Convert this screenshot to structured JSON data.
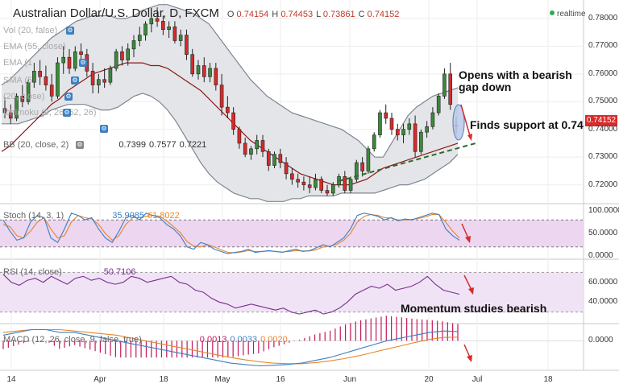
{
  "header": {
    "symbol": "Australian Dollar/U.S. Dollar, D, FXCM",
    "open_label": "O",
    "open": "0.74154",
    "high_label": "H",
    "high": "0.74453",
    "low_label": "L",
    "low": "0.73861",
    "close_label": "C",
    "close": "0.74152",
    "realtime": "realtime"
  },
  "legend": {
    "vol": "Vol (20, false)",
    "ema1": "EMA (55, close)",
    "ema2": "EMA (1",
    "sma": "SMA (5",
    "other1": "(20, close)",
    "ichimoku": "Ichimoku (9, 26, 52, 26)",
    "bb": "BB (20, close, 2)",
    "bb_values": [
      "0.7399",
      "0.7577",
      "0.7221"
    ],
    "stoch": "Stoch (14, 3, 1)",
    "stoch_values": [
      "35.9085",
      "61.8022"
    ],
    "rsi": "RSI (14, close)",
    "rsi_value": "50.7106",
    "macd": "MACD (12, 26, close, 9, false, true)",
    "macd_values": [
      "0.0013",
      "0.0033",
      "0.0020"
    ]
  },
  "annotations": {
    "gap": "Opens with a bearish gap down",
    "support": "Finds support at 0.74",
    "momentum": "Momentum studies bearish"
  },
  "price_tag": "0.74152",
  "colors": {
    "up": "#3a8a3a",
    "down": "#d62b2b",
    "bb": "#b6bcc4",
    "ma": "#8b1a1a",
    "stoch_k": "#3d7fc1",
    "stoch_d": "#e8862a",
    "rsi": "#7a2d8f",
    "macd": "#3d7fc1",
    "signal": "#e8862a",
    "hist": "#c2185b",
    "trend": "#2e6b2e"
  },
  "chart_data": [
    {
      "type": "candlestick",
      "panel": "price",
      "ylim": [
        0.7135,
        0.7855
      ],
      "yticks": [
        "0.78000",
        "0.77000",
        "0.76000",
        "0.75000",
        "0.74000",
        "0.73000",
        "0.72000"
      ],
      "ytick_values": [
        0.78,
        0.77,
        0.76,
        0.75,
        0.74,
        0.73,
        0.72
      ],
      "xticks": [
        "14",
        "Apr",
        "18",
        "May",
        "16",
        "Jun",
        "20",
        "Jul",
        "18"
      ],
      "ohlc": [
        [
          0.7475,
          0.7515,
          0.744,
          0.746
        ],
        [
          0.746,
          0.749,
          0.742,
          0.744
        ],
        [
          0.744,
          0.753,
          0.743,
          0.752
        ],
        [
          0.752,
          0.756,
          0.748,
          0.75
        ],
        [
          0.75,
          0.758,
          0.749,
          0.757
        ],
        [
          0.757,
          0.764,
          0.755,
          0.761
        ],
        [
          0.761,
          0.765,
          0.756,
          0.759
        ],
        [
          0.759,
          0.763,
          0.754,
          0.756
        ],
        [
          0.756,
          0.76,
          0.75,
          0.752
        ],
        [
          0.752,
          0.766,
          0.751,
          0.764
        ],
        [
          0.764,
          0.77,
          0.76,
          0.766
        ],
        [
          0.766,
          0.769,
          0.76,
          0.762
        ],
        [
          0.762,
          0.77,
          0.761,
          0.768
        ],
        [
          0.768,
          0.771,
          0.764,
          0.767
        ],
        [
          0.767,
          0.769,
          0.759,
          0.761
        ],
        [
          0.761,
          0.764,
          0.753,
          0.756
        ],
        [
          0.756,
          0.76,
          0.753,
          0.758
        ],
        [
          0.758,
          0.762,
          0.755,
          0.757
        ],
        [
          0.757,
          0.763,
          0.756,
          0.762
        ],
        [
          0.762,
          0.769,
          0.761,
          0.768
        ],
        [
          0.768,
          0.77,
          0.763,
          0.765
        ],
        [
          0.765,
          0.771,
          0.763,
          0.769
        ],
        [
          0.769,
          0.774,
          0.766,
          0.772
        ],
        [
          0.772,
          0.777,
          0.77,
          0.774
        ],
        [
          0.774,
          0.779,
          0.772,
          0.778
        ],
        [
          0.778,
          0.782,
          0.775,
          0.78
        ],
        [
          0.78,
          0.784,
          0.777,
          0.779
        ],
        [
          0.779,
          0.781,
          0.774,
          0.776
        ],
        [
          0.776,
          0.779,
          0.773,
          0.777
        ],
        [
          0.777,
          0.779,
          0.771,
          0.772
        ],
        [
          0.772,
          0.776,
          0.77,
          0.774
        ],
        [
          0.774,
          0.776,
          0.765,
          0.767
        ],
        [
          0.767,
          0.769,
          0.759,
          0.76
        ],
        [
          0.76,
          0.765,
          0.758,
          0.763
        ],
        [
          0.763,
          0.766,
          0.757,
          0.759
        ],
        [
          0.759,
          0.764,
          0.757,
          0.762
        ],
        [
          0.762,
          0.764,
          0.754,
          0.756
        ],
        [
          0.756,
          0.76,
          0.745,
          0.748
        ],
        [
          0.748,
          0.752,
          0.744,
          0.746
        ],
        [
          0.746,
          0.748,
          0.738,
          0.74
        ],
        [
          0.74,
          0.741,
          0.733,
          0.735
        ],
        [
          0.735,
          0.737,
          0.73,
          0.731
        ],
        [
          0.731,
          0.734,
          0.729,
          0.733
        ],
        [
          0.733,
          0.738,
          0.731,
          0.736
        ],
        [
          0.736,
          0.738,
          0.73,
          0.732
        ],
        [
          0.732,
          0.733,
          0.725,
          0.727
        ],
        [
          0.727,
          0.732,
          0.726,
          0.731
        ],
        [
          0.731,
          0.733,
          0.726,
          0.728
        ],
        [
          0.728,
          0.73,
          0.722,
          0.724
        ],
        [
          0.724,
          0.726,
          0.72,
          0.722
        ],
        [
          0.722,
          0.724,
          0.719,
          0.721
        ],
        [
          0.721,
          0.723,
          0.718,
          0.72
        ],
        [
          0.72,
          0.723,
          0.717,
          0.719
        ],
        [
          0.719,
          0.724,
          0.718,
          0.722
        ],
        [
          0.722,
          0.723,
          0.717,
          0.718
        ],
        [
          0.718,
          0.72,
          0.716,
          0.717
        ],
        [
          0.717,
          0.721,
          0.716,
          0.72
        ],
        [
          0.72,
          0.724,
          0.719,
          0.723
        ],
        [
          0.723,
          0.725,
          0.717,
          0.718
        ],
        [
          0.718,
          0.723,
          0.717,
          0.722
        ],
        [
          0.722,
          0.729,
          0.721,
          0.728
        ],
        [
          0.728,
          0.73,
          0.723,
          0.725
        ],
        [
          0.725,
          0.734,
          0.724,
          0.733
        ],
        [
          0.733,
          0.739,
          0.732,
          0.738
        ],
        [
          0.738,
          0.747,
          0.737,
          0.746
        ],
        [
          0.746,
          0.749,
          0.742,
          0.744
        ],
        [
          0.744,
          0.746,
          0.738,
          0.74
        ],
        [
          0.74,
          0.742,
          0.736,
          0.738
        ],
        [
          0.738,
          0.742,
          0.735,
          0.74
        ],
        [
          0.74,
          0.744,
          0.738,
          0.742
        ],
        [
          0.742,
          0.745,
          0.73,
          0.732
        ],
        [
          0.732,
          0.74,
          0.731,
          0.739
        ],
        [
          0.739,
          0.743,
          0.737,
          0.741
        ],
        [
          0.741,
          0.748,
          0.74,
          0.746
        ],
        [
          0.746,
          0.753,
          0.745,
          0.752
        ],
        [
          0.752,
          0.762,
          0.751,
          0.76
        ],
        [
          0.76,
          0.764,
          0.747,
          0.749
        ],
        [
          0.7415,
          0.7445,
          0.7386,
          0.7415
        ]
      ],
      "series": [
        {
          "name": "BB upper",
          "values": [
            0.756,
            0.758,
            0.761,
            0.764,
            0.767,
            0.77,
            0.773,
            0.775,
            0.777,
            0.779,
            0.78,
            0.781,
            0.781,
            0.781,
            0.78,
            0.78,
            0.781,
            0.783,
            0.784,
            0.785,
            0.785,
            0.784,
            0.783,
            0.782,
            0.78,
            0.778,
            0.774,
            0.77,
            0.766,
            0.762,
            0.758,
            0.755,
            0.752,
            0.75,
            0.748,
            0.746,
            0.745,
            0.744,
            0.743,
            0.742,
            0.741,
            0.74,
            0.738,
            0.736,
            0.733,
            0.73,
            0.73,
            0.735,
            0.74,
            0.745,
            0.748,
            0.75,
            0.752,
            0.753,
            0.754,
            0.755
          ]
        },
        {
          "name": "BB lower",
          "values": [
            0.742,
            0.742,
            0.742,
            0.743,
            0.744,
            0.745,
            0.747,
            0.748,
            0.749,
            0.749,
            0.749,
            0.748,
            0.747,
            0.747,
            0.748,
            0.75,
            0.752,
            0.753,
            0.752,
            0.75,
            0.747,
            0.743,
            0.738,
            0.733,
            0.728,
            0.724,
            0.721,
            0.719,
            0.717,
            0.716,
            0.715,
            0.715,
            0.714,
            0.714,
            0.714,
            0.715,
            0.715,
            0.716,
            0.716,
            0.716,
            0.716,
            0.717,
            0.717,
            0.717,
            0.717,
            0.717,
            0.718,
            0.719,
            0.72,
            0.72,
            0.721,
            0.722,
            0.724,
            0.726,
            0.728,
            0.731
          ]
        },
        {
          "name": "Moving average",
          "values": [
            0.732,
            0.734,
            0.737,
            0.74,
            0.743,
            0.746,
            0.749,
            0.751,
            0.754,
            0.756,
            0.758,
            0.76,
            0.761,
            0.762,
            0.763,
            0.764,
            0.764,
            0.764,
            0.763,
            0.763,
            0.762,
            0.76,
            0.758,
            0.756,
            0.754,
            0.751,
            0.748,
            0.745,
            0.742,
            0.739,
            0.736,
            0.734,
            0.732,
            0.73,
            0.728,
            0.726,
            0.724,
            0.723,
            0.722,
            0.721,
            0.72,
            0.72,
            0.72,
            0.721,
            0.722,
            0.724,
            0.726,
            0.727,
            0.728,
            0.729,
            0.73,
            0.731,
            0.732,
            0.733,
            0.734,
            0.735
          ]
        }
      ],
      "trendline": [
        [
          0.718
        ],
        [
          0.732
        ]
      ]
    },
    {
      "type": "line",
      "panel": "stochastic",
      "ylim": [
        0,
        100
      ],
      "yticks": [
        "100.0000",
        "50.0000",
        "0.0000"
      ],
      "ytick_values": [
        100,
        50,
        0
      ],
      "bands": [
        80,
        20
      ],
      "series": [
        {
          "name": "%K",
          "values": [
            80,
            55,
            35,
            40,
            75,
            90,
            85,
            40,
            30,
            60,
            95,
            90,
            80,
            85,
            60,
            40,
            30,
            55,
            85,
            90,
            80,
            95,
            90,
            85,
            70,
            60,
            45,
            20,
            15,
            30,
            25,
            15,
            10,
            5,
            8,
            10,
            15,
            8,
            10,
            12,
            10,
            8,
            12,
            15,
            10,
            12,
            18,
            25,
            20,
            30,
            40,
            60,
            90,
            95,
            92,
            88,
            80,
            85,
            78,
            82,
            80,
            85,
            90,
            95,
            92,
            60,
            45,
            35
          ]
        },
        {
          "name": "%D",
          "values": [
            70,
            65,
            45,
            40,
            55,
            75,
            85,
            60,
            40,
            45,
            75,
            90,
            85,
            82,
            70,
            50,
            35,
            45,
            70,
            85,
            85,
            88,
            90,
            88,
            78,
            65,
            52,
            32,
            22,
            20,
            25,
            20,
            14,
            8,
            7,
            9,
            12,
            10,
            10,
            11,
            10,
            9,
            10,
            12,
            11,
            11,
            14,
            20,
            22,
            26,
            35,
            50,
            75,
            88,
            92,
            90,
            85,
            84,
            80,
            80,
            81,
            83,
            87,
            92,
            92,
            75,
            55,
            40
          ]
        }
      ]
    },
    {
      "type": "line",
      "panel": "rsi",
      "ylim": [
        20,
        80
      ],
      "yticks": [
        "60.0000",
        "40.0000"
      ],
      "ytick_values": [
        60,
        40
      ],
      "bands": [
        70,
        30
      ],
      "series": [
        {
          "name": "RSI",
          "values": [
            68,
            60,
            57,
            62,
            64,
            60,
            66,
            62,
            58,
            64,
            66,
            62,
            64,
            60,
            58,
            60,
            66,
            64,
            60,
            62,
            64,
            66,
            60,
            58,
            52,
            50,
            44,
            40,
            38,
            34,
            36,
            38,
            36,
            34,
            32,
            34,
            30,
            28,
            30,
            32,
            28,
            30,
            34,
            40,
            48,
            52,
            56,
            54,
            58,
            52,
            54,
            56,
            60,
            66,
            58,
            52,
            50,
            48
          ]
        }
      ]
    },
    {
      "type": "line",
      "panel": "macd",
      "ylim": [
        -0.01,
        0.005
      ],
      "yticks": [
        "0.0000"
      ],
      "ytick_values": [
        0
      ],
      "series": [
        {
          "name": "MACD",
          "values": [
            0.002,
            0.003,
            0.004,
            0.004,
            0.003,
            0.003,
            0.002,
            0.001,
            0.0,
            -0.001,
            -0.002,
            -0.003,
            -0.004,
            -0.005,
            -0.006,
            -0.007,
            -0.008,
            -0.0085,
            -0.009,
            -0.0088,
            -0.0085,
            -0.008,
            -0.007,
            -0.006,
            -0.0045,
            -0.003,
            -0.0015,
            0.0,
            0.001,
            0.002,
            0.003,
            0.0035,
            0.0033
          ]
        },
        {
          "name": "Signal",
          "values": [
            0.003,
            0.0035,
            0.004,
            0.004,
            0.004,
            0.0035,
            0.003,
            0.0025,
            0.002,
            0.001,
            0.0,
            -0.001,
            -0.002,
            -0.003,
            -0.004,
            -0.005,
            -0.006,
            -0.0068,
            -0.0075,
            -0.008,
            -0.0082,
            -0.0082,
            -0.0078,
            -0.0072,
            -0.0064,
            -0.0054,
            -0.0042,
            -0.003,
            -0.0018,
            -0.0006,
            0.0005,
            0.0012,
            0.0013
          ]
        }
      ]
    }
  ]
}
